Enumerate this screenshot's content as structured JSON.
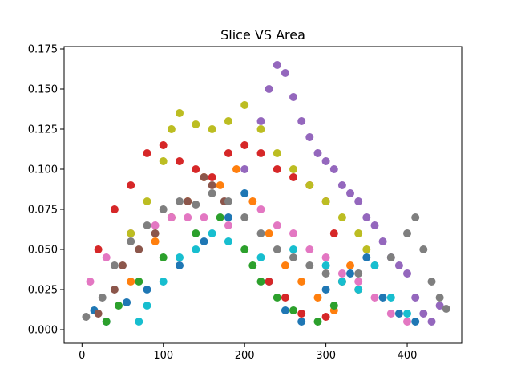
{
  "chart_data": {
    "type": "scatter",
    "title": "Slice VS Area",
    "xlabel": "",
    "ylabel": "",
    "xlim": [
      -22,
      467
    ],
    "ylim": [
      -0.0085,
      0.1765
    ],
    "x_ticks": [
      0,
      100,
      200,
      300,
      400
    ],
    "y_ticks": [
      0.0,
      0.025,
      0.05,
      0.075,
      0.1,
      0.125,
      0.15,
      0.175
    ],
    "y_tick_labels": [
      "0.000",
      "0.025",
      "0.050",
      "0.075",
      "0.100",
      "0.125",
      "0.150",
      "0.175"
    ],
    "grid": false,
    "legend": "none",
    "series": [
      {
        "color": "#1f77b4",
        "points": [
          [
            15,
            0.012
          ],
          [
            30,
            0.005
          ],
          [
            55,
            0.017
          ],
          [
            80,
            0.025
          ],
          [
            120,
            0.04
          ],
          [
            150,
            0.055
          ],
          [
            180,
            0.07
          ],
          [
            200,
            0.085
          ],
          [
            230,
            0.03
          ],
          [
            250,
            0.012
          ],
          [
            270,
            0.005
          ],
          [
            300,
            0.025
          ],
          [
            330,
            0.035
          ],
          [
            350,
            0.045
          ],
          [
            370,
            0.02
          ],
          [
            390,
            0.01
          ],
          [
            410,
            0.005
          ]
        ]
      },
      {
        "color": "#ff7f0e",
        "points": [
          [
            60,
            0.03
          ],
          [
            90,
            0.055
          ],
          [
            110,
            0.07
          ],
          [
            130,
            0.08
          ],
          [
            150,
            0.095
          ],
          [
            170,
            0.09
          ],
          [
            190,
            0.1
          ],
          [
            210,
            0.08
          ],
          [
            230,
            0.06
          ],
          [
            250,
            0.04
          ],
          [
            270,
            0.03
          ],
          [
            290,
            0.02
          ],
          [
            310,
            0.012
          ],
          [
            320,
            0.03
          ],
          [
            330,
            0.04
          ],
          [
            340,
            0.025
          ]
        ]
      },
      {
        "color": "#2ca02c",
        "points": [
          [
            30,
            0.005
          ],
          [
            45,
            0.015
          ],
          [
            70,
            0.03
          ],
          [
            100,
            0.045
          ],
          [
            140,
            0.06
          ],
          [
            170,
            0.07
          ],
          [
            200,
            0.05
          ],
          [
            210,
            0.04
          ],
          [
            220,
            0.03
          ],
          [
            240,
            0.02
          ],
          [
            260,
            0.012
          ],
          [
            290,
            0.005
          ],
          [
            310,
            0.015
          ]
        ]
      },
      {
        "color": "#d62728",
        "points": [
          [
            20,
            0.05
          ],
          [
            40,
            0.075
          ],
          [
            60,
            0.09
          ],
          [
            80,
            0.11
          ],
          [
            100,
            0.115
          ],
          [
            120,
            0.105
          ],
          [
            140,
            0.1
          ],
          [
            160,
            0.095
          ],
          [
            180,
            0.11
          ],
          [
            200,
            0.115
          ],
          [
            220,
            0.11
          ],
          [
            240,
            0.1
          ],
          [
            260,
            0.095
          ],
          [
            280,
            0.09
          ],
          [
            300,
            0.08
          ],
          [
            310,
            0.06
          ],
          [
            230,
            0.03
          ],
          [
            250,
            0.02
          ],
          [
            270,
            0.01
          ],
          [
            300,
            0.008
          ]
        ]
      },
      {
        "color": "#9467bd",
        "points": [
          [
            200,
            0.1
          ],
          [
            220,
            0.13
          ],
          [
            230,
            0.15
          ],
          [
            240,
            0.165
          ],
          [
            250,
            0.16
          ],
          [
            260,
            0.145
          ],
          [
            270,
            0.13
          ],
          [
            280,
            0.12
          ],
          [
            290,
            0.11
          ],
          [
            300,
            0.105
          ],
          [
            310,
            0.1
          ],
          [
            320,
            0.09
          ],
          [
            330,
            0.085
          ],
          [
            340,
            0.08
          ],
          [
            350,
            0.07
          ],
          [
            360,
            0.065
          ],
          [
            370,
            0.055
          ],
          [
            380,
            0.045
          ],
          [
            390,
            0.04
          ],
          [
            400,
            0.035
          ],
          [
            410,
            0.02
          ],
          [
            420,
            0.01
          ],
          [
            430,
            0.005
          ],
          [
            440,
            0.015
          ]
        ]
      },
      {
        "color": "#8c564b",
        "points": [
          [
            20,
            0.01
          ],
          [
            40,
            0.025
          ],
          [
            50,
            0.04
          ],
          [
            70,
            0.05
          ],
          [
            90,
            0.06
          ],
          [
            110,
            0.07
          ],
          [
            130,
            0.08
          ],
          [
            150,
            0.095
          ],
          [
            160,
            0.09
          ],
          [
            175,
            0.08
          ]
        ]
      },
      {
        "color": "#e377c2",
        "points": [
          [
            10,
            0.03
          ],
          [
            30,
            0.045
          ],
          [
            60,
            0.06
          ],
          [
            90,
            0.065
          ],
          [
            110,
            0.07
          ],
          [
            130,
            0.07
          ],
          [
            150,
            0.07
          ],
          [
            180,
            0.065
          ],
          [
            220,
            0.075
          ],
          [
            240,
            0.065
          ],
          [
            260,
            0.06
          ],
          [
            280,
            0.05
          ],
          [
            300,
            0.045
          ],
          [
            320,
            0.035
          ],
          [
            340,
            0.03
          ],
          [
            360,
            0.02
          ],
          [
            380,
            0.01
          ],
          [
            400,
            0.005
          ]
        ]
      },
      {
        "color": "#7f7f7f",
        "points": [
          [
            5,
            0.008
          ],
          [
            25,
            0.02
          ],
          [
            40,
            0.04
          ],
          [
            60,
            0.055
          ],
          [
            80,
            0.065
          ],
          [
            100,
            0.075
          ],
          [
            120,
            0.08
          ],
          [
            140,
            0.078
          ],
          [
            160,
            0.085
          ],
          [
            180,
            0.08
          ],
          [
            200,
            0.07
          ],
          [
            220,
            0.06
          ],
          [
            240,
            0.05
          ],
          [
            260,
            0.045
          ],
          [
            280,
            0.04
          ],
          [
            300,
            0.035
          ],
          [
            320,
            0.03
          ],
          [
            340,
            0.035
          ],
          [
            360,
            0.04
          ],
          [
            380,
            0.045
          ],
          [
            400,
            0.06
          ],
          [
            410,
            0.07
          ],
          [
            420,
            0.05
          ],
          [
            430,
            0.03
          ],
          [
            440,
            0.02
          ],
          [
            448,
            0.013
          ]
        ]
      },
      {
        "color": "#bcbd22",
        "points": [
          [
            60,
            0.06
          ],
          [
            80,
            0.08
          ],
          [
            100,
            0.105
          ],
          [
            110,
            0.125
          ],
          [
            120,
            0.135
          ],
          [
            140,
            0.128
          ],
          [
            160,
            0.125
          ],
          [
            180,
            0.13
          ],
          [
            200,
            0.14
          ],
          [
            220,
            0.125
          ],
          [
            240,
            0.11
          ],
          [
            260,
            0.1
          ],
          [
            280,
            0.09
          ],
          [
            300,
            0.08
          ],
          [
            320,
            0.07
          ],
          [
            340,
            0.06
          ],
          [
            350,
            0.05
          ]
        ]
      },
      {
        "color": "#17becf",
        "points": [
          [
            70,
            0.005
          ],
          [
            80,
            0.015
          ],
          [
            100,
            0.03
          ],
          [
            120,
            0.045
          ],
          [
            140,
            0.05
          ],
          [
            160,
            0.06
          ],
          [
            180,
            0.055
          ],
          [
            220,
            0.045
          ],
          [
            260,
            0.05
          ],
          [
            300,
            0.04
          ],
          [
            320,
            0.03
          ],
          [
            340,
            0.025
          ],
          [
            360,
            0.04
          ],
          [
            380,
            0.02
          ],
          [
            400,
            0.01
          ]
        ]
      }
    ]
  }
}
